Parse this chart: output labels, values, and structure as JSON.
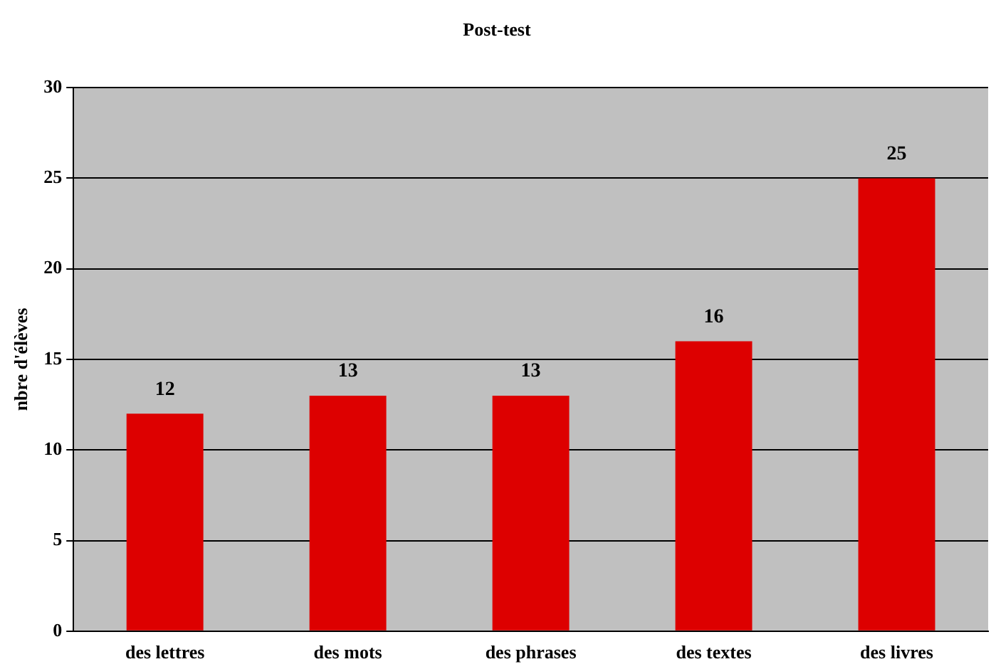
{
  "chart_data": {
    "type": "bar",
    "title": "Post-test",
    "ylabel": "nbre d'élèves",
    "categories": [
      "des lettres",
      "des mots",
      "des phrases",
      "des textes",
      "des livres"
    ],
    "values": [
      12,
      13,
      13,
      16,
      25
    ],
    "color": "#dd0000",
    "ylim": [
      0,
      30
    ],
    "yticks": [
      0,
      5,
      10,
      15,
      20,
      25,
      30
    ],
    "grid": "y",
    "data_labels": true
  }
}
